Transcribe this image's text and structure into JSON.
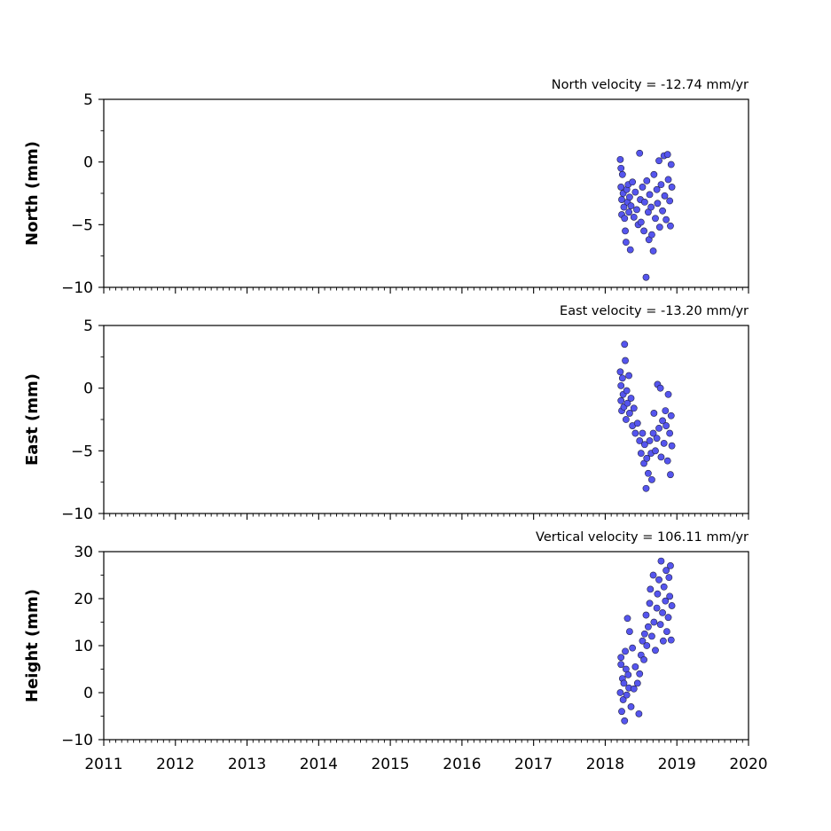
{
  "chart_data": [
    {
      "type": "scatter",
      "ylabel": "North (mm)",
      "annotation": "North velocity = -12.74 mm/yr",
      "xlim": [
        2011,
        2020
      ],
      "ylim": [
        -10,
        5
      ],
      "yticks": [
        "5",
        "0",
        "−5",
        "−10"
      ],
      "ytick_values": [
        5,
        0,
        -5,
        -10
      ],
      "points": [
        [
          2018.21,
          0.2
        ],
        [
          2018.22,
          -0.5
        ],
        [
          2018.22,
          -2.0
        ],
        [
          2018.23,
          -3.0
        ],
        [
          2018.23,
          -4.2
        ],
        [
          2018.24,
          -1.0
        ],
        [
          2018.25,
          -2.5
        ],
        [
          2018.26,
          -3.6
        ],
        [
          2018.27,
          -4.5
        ],
        [
          2018.28,
          -5.5
        ],
        [
          2018.29,
          -6.4
        ],
        [
          2018.3,
          -2.2
        ],
        [
          2018.31,
          -3.2
        ],
        [
          2018.32,
          -1.8
        ],
        [
          2018.33,
          -4.0
        ],
        [
          2018.34,
          -2.8
        ],
        [
          2018.35,
          -7.0
        ],
        [
          2018.36,
          -3.5
        ],
        [
          2018.38,
          -1.6
        ],
        [
          2018.4,
          -4.4
        ],
        [
          2018.42,
          -2.4
        ],
        [
          2018.44,
          -3.8
        ],
        [
          2018.46,
          -5.0
        ],
        [
          2018.48,
          0.7
        ],
        [
          2018.49,
          -3.0
        ],
        [
          2018.5,
          -4.8
        ],
        [
          2018.52,
          -2.0
        ],
        [
          2018.54,
          -5.5
        ],
        [
          2018.55,
          -3.2
        ],
        [
          2018.57,
          -9.2
        ],
        [
          2018.58,
          -1.5
        ],
        [
          2018.6,
          -4.0
        ],
        [
          2018.61,
          -6.2
        ],
        [
          2018.62,
          -2.6
        ],
        [
          2018.64,
          -3.6
        ],
        [
          2018.65,
          -5.8
        ],
        [
          2018.67,
          -7.1
        ],
        [
          2018.68,
          -1.0
        ],
        [
          2018.7,
          -4.5
        ],
        [
          2018.72,
          -2.2
        ],
        [
          2018.73,
          -3.3
        ],
        [
          2018.75,
          0.1
        ],
        [
          2018.76,
          -5.2
        ],
        [
          2018.78,
          -1.8
        ],
        [
          2018.8,
          -3.9
        ],
        [
          2018.82,
          0.5
        ],
        [
          2018.83,
          -2.7
        ],
        [
          2018.85,
          -4.6
        ],
        [
          2018.87,
          0.6
        ],
        [
          2018.88,
          -1.4
        ],
        [
          2018.9,
          -3.1
        ],
        [
          2018.91,
          -5.1
        ],
        [
          2018.92,
          -0.2
        ],
        [
          2018.93,
          -2.0
        ]
      ]
    },
    {
      "type": "scatter",
      "ylabel": "East (mm)",
      "annotation": "East velocity = -13.20 mm/yr",
      "xlim": [
        2011,
        2020
      ],
      "ylim": [
        -10,
        5
      ],
      "yticks": [
        "5",
        "0",
        "−5",
        "−10"
      ],
      "ytick_values": [
        5,
        0,
        -5,
        -10
      ],
      "points": [
        [
          2018.21,
          1.3
        ],
        [
          2018.22,
          0.2
        ],
        [
          2018.22,
          -1.0
        ],
        [
          2018.23,
          -1.8
        ],
        [
          2018.24,
          0.8
        ],
        [
          2018.25,
          -0.5
        ],
        [
          2018.26,
          -1.5
        ],
        [
          2018.27,
          3.5
        ],
        [
          2018.28,
          2.2
        ],
        [
          2018.29,
          -2.5
        ],
        [
          2018.3,
          -0.2
        ],
        [
          2018.31,
          -1.2
        ],
        [
          2018.33,
          1.0
        ],
        [
          2018.34,
          -2.0
        ],
        [
          2018.36,
          -0.8
        ],
        [
          2018.38,
          -3.0
        ],
        [
          2018.4,
          -1.6
        ],
        [
          2018.42,
          -3.6
        ],
        [
          2018.45,
          -2.8
        ],
        [
          2018.48,
          -4.2
        ],
        [
          2018.5,
          -5.2
        ],
        [
          2018.52,
          -3.6
        ],
        [
          2018.54,
          -6.0
        ],
        [
          2018.55,
          -4.5
        ],
        [
          2018.57,
          -8.0
        ],
        [
          2018.58,
          -5.6
        ],
        [
          2018.6,
          -6.8
        ],
        [
          2018.62,
          -4.2
        ],
        [
          2018.64,
          -5.2
        ],
        [
          2018.65,
          -7.3
        ],
        [
          2018.67,
          -3.6
        ],
        [
          2018.68,
          -2.0
        ],
        [
          2018.7,
          -5.0
        ],
        [
          2018.72,
          -4.0
        ],
        [
          2018.73,
          0.3
        ],
        [
          2018.75,
          -3.2
        ],
        [
          2018.77,
          0.0
        ],
        [
          2018.78,
          -5.5
        ],
        [
          2018.8,
          -2.6
        ],
        [
          2018.82,
          -4.4
        ],
        [
          2018.84,
          -1.8
        ],
        [
          2018.85,
          -3.0
        ],
        [
          2018.87,
          -5.8
        ],
        [
          2018.88,
          -0.5
        ],
        [
          2018.9,
          -3.6
        ],
        [
          2018.91,
          -6.9
        ],
        [
          2018.92,
          -2.2
        ],
        [
          2018.93,
          -4.6
        ]
      ]
    },
    {
      "type": "scatter",
      "ylabel": "Height (mm)",
      "annotation": "Vertical velocity = 106.11 mm/yr",
      "xlim": [
        2011,
        2020
      ],
      "ylim": [
        -10,
        30
      ],
      "yticks": [
        "30",
        "20",
        "10",
        "0",
        "−10"
      ],
      "ytick_values": [
        30,
        20,
        10,
        0,
        -10
      ],
      "xticks": [
        "2011",
        "2012",
        "2013",
        "2014",
        "2015",
        "2016",
        "2017",
        "2018",
        "2019",
        "2020"
      ],
      "xtick_values": [
        2011,
        2012,
        2013,
        2014,
        2015,
        2016,
        2017,
        2018,
        2019,
        2020
      ],
      "points": [
        [
          2018.21,
          0.0
        ],
        [
          2018.22,
          6.0
        ],
        [
          2018.22,
          7.5
        ],
        [
          2018.23,
          -4.0
        ],
        [
          2018.24,
          3.0
        ],
        [
          2018.25,
          -1.5
        ],
        [
          2018.26,
          2.0
        ],
        [
          2018.27,
          -6.0
        ],
        [
          2018.28,
          8.8
        ],
        [
          2018.29,
          5.0
        ],
        [
          2018.3,
          -0.5
        ],
        [
          2018.31,
          15.8
        ],
        [
          2018.32,
          3.8
        ],
        [
          2018.33,
          1.0
        ],
        [
          2018.34,
          13.0
        ],
        [
          2018.36,
          -3.0
        ],
        [
          2018.38,
          9.5
        ],
        [
          2018.4,
          0.8
        ],
        [
          2018.42,
          5.5
        ],
        [
          2018.45,
          2.0
        ],
        [
          2018.47,
          -4.5
        ],
        [
          2018.48,
          4.0
        ],
        [
          2018.5,
          8.0
        ],
        [
          2018.52,
          11.0
        ],
        [
          2018.54,
          7.0
        ],
        [
          2018.55,
          12.5
        ],
        [
          2018.57,
          16.5
        ],
        [
          2018.58,
          10.0
        ],
        [
          2018.6,
          14.0
        ],
        [
          2018.62,
          19.0
        ],
        [
          2018.63,
          22.0
        ],
        [
          2018.65,
          12.0
        ],
        [
          2018.67,
          25.0
        ],
        [
          2018.68,
          15.0
        ],
        [
          2018.7,
          9.0
        ],
        [
          2018.72,
          18.0
        ],
        [
          2018.73,
          21.0
        ],
        [
          2018.75,
          24.0
        ],
        [
          2018.77,
          14.5
        ],
        [
          2018.78,
          28.0
        ],
        [
          2018.8,
          17.0
        ],
        [
          2018.81,
          11.0
        ],
        [
          2018.82,
          22.5
        ],
        [
          2018.84,
          19.5
        ],
        [
          2018.85,
          26.0
        ],
        [
          2018.86,
          13.0
        ],
        [
          2018.88,
          16.0
        ],
        [
          2018.89,
          24.5
        ],
        [
          2018.9,
          20.5
        ],
        [
          2018.91,
          27.0
        ],
        [
          2018.92,
          11.2
        ],
        [
          2018.93,
          18.5
        ]
      ]
    }
  ]
}
